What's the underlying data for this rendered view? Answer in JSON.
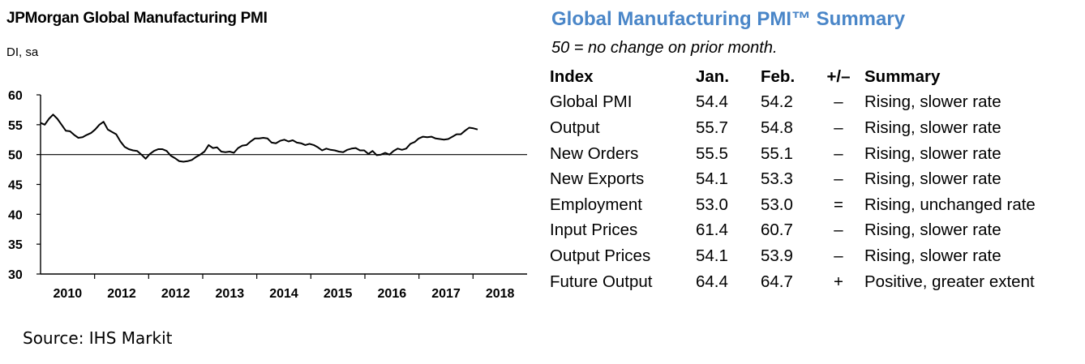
{
  "left": {
    "title": "JPMorgan Global Manufacturing PMI",
    "unit": "DI, sa"
  },
  "right": {
    "title": "Global Manufacturing PMI™ Summary",
    "note": "50 = no change on prior month.",
    "headers": {
      "index": "Index",
      "jan": "Jan.",
      "feb": "Feb.",
      "change": "+/–",
      "summary": "Summary"
    },
    "rows": [
      {
        "index": "Global PMI",
        "jan": "54.4",
        "feb": "54.2",
        "change": "–",
        "summary": "Rising, slower rate"
      },
      {
        "index": "Output",
        "jan": "55.7",
        "feb": "54.8",
        "change": "–",
        "summary": "Rising, slower rate"
      },
      {
        "index": "New Orders",
        "jan": "55.5",
        "feb": "55.1",
        "change": "–",
        "summary": "Rising, slower rate"
      },
      {
        "index": "New Exports",
        "jan": "54.1",
        "feb": "53.3",
        "change": "–",
        "summary": "Rising, slower rate"
      },
      {
        "index": "Employment",
        "jan": "53.0",
        "feb": "53.0",
        "change": "=",
        "summary": "Rising, unchanged rate"
      },
      {
        "index": "Input Prices",
        "jan": "61.4",
        "feb": "60.7",
        "change": "–",
        "summary": "Rising, slower rate"
      },
      {
        "index": "Output Prices",
        "jan": "54.1",
        "feb": "53.9",
        "change": "–",
        "summary": "Rising, slower rate"
      },
      {
        "index": "Future Output",
        "jan": "64.4",
        "feb": "64.7",
        "change": "+",
        "summary": "Positive, greater extent"
      }
    ]
  },
  "source": "Source: IHS Markit",
  "chart_data": {
    "type": "line",
    "title": "JPMorgan Global Manufacturing PMI",
    "ylabel": "DI, sa",
    "xlabel": "",
    "ylim": [
      30,
      60
    ],
    "yticks": [
      30,
      35,
      40,
      45,
      50,
      55,
      60
    ],
    "x_tick_labels": [
      "2010",
      "2012",
      "2012",
      "2013",
      "2014",
      "2015",
      "2016",
      "2017",
      "2018"
    ],
    "reference_line": 50,
    "grid": false,
    "line_color": "#000000",
    "series": [
      {
        "name": "Global Manufacturing PMI",
        "values": [
          55.3,
          55.0,
          56.0,
          56.7,
          56.0,
          55.0,
          54.0,
          53.9,
          53.3,
          52.8,
          52.9,
          53.3,
          53.6,
          54.2,
          55.0,
          55.5,
          54.2,
          53.8,
          53.4,
          52.2,
          51.3,
          50.9,
          50.7,
          50.6,
          50.0,
          49.3,
          50.1,
          50.6,
          50.9,
          50.9,
          50.6,
          49.8,
          49.4,
          48.9,
          48.8,
          48.9,
          49.1,
          49.6,
          50.0,
          50.5,
          51.6,
          51.1,
          51.2,
          50.5,
          50.4,
          50.5,
          50.3,
          51.1,
          51.5,
          51.6,
          52.2,
          52.7,
          52.7,
          52.8,
          52.7,
          52.0,
          51.9,
          52.3,
          52.5,
          52.2,
          52.4,
          52.0,
          51.9,
          51.6,
          51.8,
          51.6,
          51.2,
          50.7,
          51.0,
          50.8,
          50.7,
          50.5,
          50.4,
          50.8,
          51.0,
          51.1,
          50.7,
          50.7,
          50.1,
          50.6,
          49.9,
          50.0,
          50.3,
          50.0,
          50.6,
          51.0,
          50.8,
          51.0,
          51.8,
          52.1,
          52.7,
          53.0,
          52.9,
          53.0,
          52.7,
          52.6,
          52.5,
          52.6,
          53.0,
          53.4,
          53.4,
          54.0,
          54.5,
          54.4,
          54.2
        ]
      }
    ]
  }
}
